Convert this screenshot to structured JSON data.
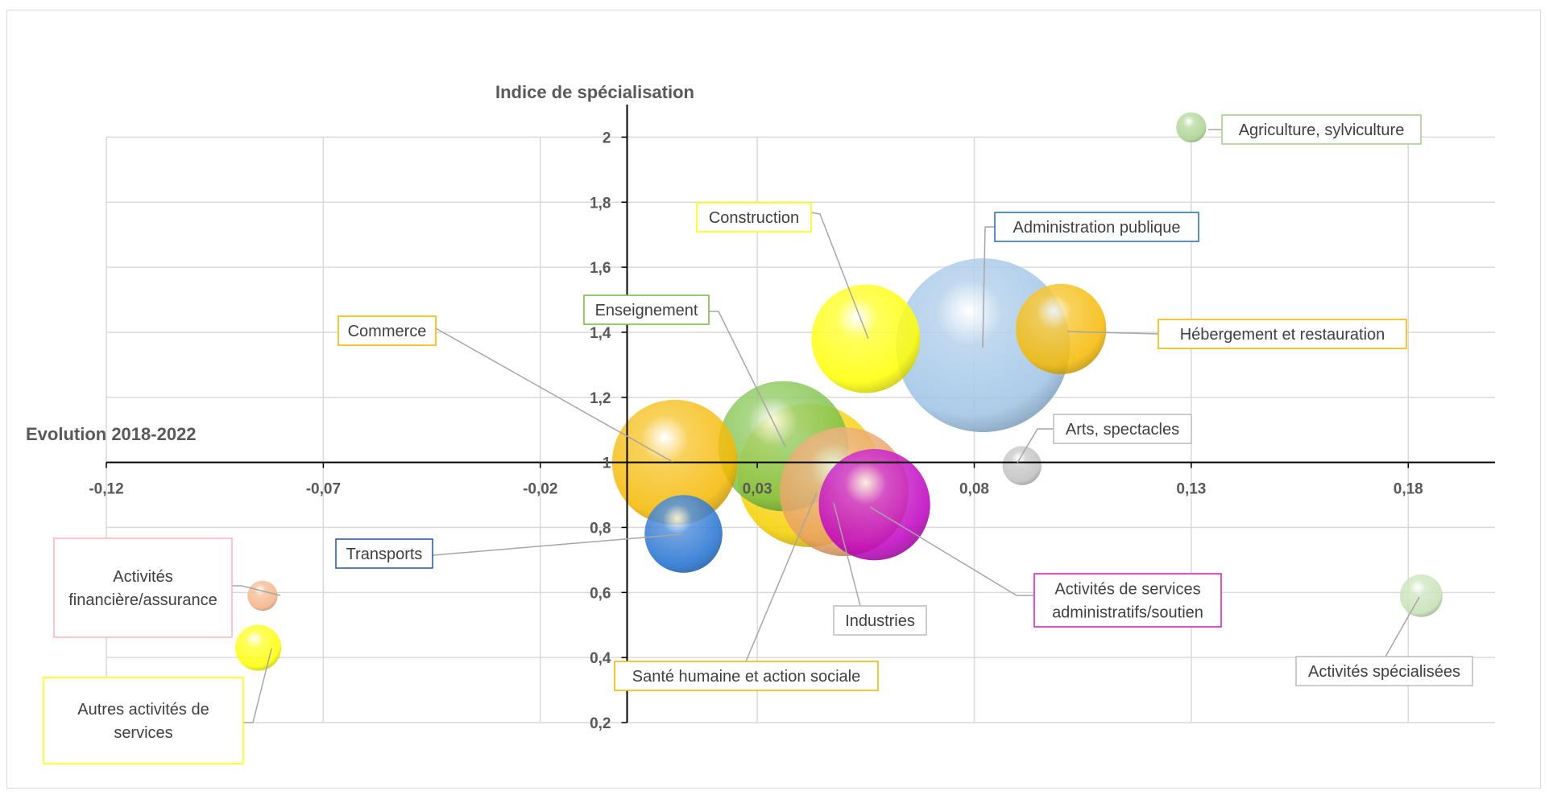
{
  "chart_data": {
    "type": "bubble",
    "xlabel": "Evolution 2018-2022",
    "ylabel": "Indice de spécialisation",
    "xlim": [
      -0.12,
      0.2
    ],
    "ylim": [
      0.2,
      2.1
    ],
    "x_ticks": [
      -0.12,
      -0.07,
      -0.02,
      0.03,
      0.08,
      0.13,
      0.18
    ],
    "x_tick_labels": [
      "-0,12",
      "-0,07",
      "-0,02",
      "0,03",
      "0,08",
      "0,13",
      "0,18"
    ],
    "y_ticks": [
      0.2,
      0.4,
      0.6,
      0.8,
      1.0,
      1.2,
      1.4,
      1.6,
      1.8,
      2.0
    ],
    "y_tick_labels": [
      "0,2",
      "0,4",
      "0,6",
      "0,8",
      "1",
      "1,2",
      "1,4",
      "1,6",
      "1,8",
      "2"
    ],
    "x_axis_crosses_y": 1.0,
    "y_axis_crosses_x": 0.0,
    "grid": true,
    "series": [
      {
        "name": "Commerce",
        "x": 0.011,
        "y": 1.0,
        "size": 0.52,
        "color": "#f5b800",
        "label_border": "#f5b800",
        "label_lines": [
          "Commerce"
        ]
      },
      {
        "name": "Hébergement et restauration",
        "x": 0.1,
        "y": 1.41,
        "size": 0.27,
        "color": "#f5b800",
        "label_border": "#f5b800",
        "label_lines": [
          "Hébergement et restauration"
        ]
      },
      {
        "name": "Construction",
        "x": 0.055,
        "y": 1.38,
        "size": 0.39,
        "color": "#ffff00",
        "label_border": "#ffff00",
        "label_lines": [
          "Construction"
        ]
      },
      {
        "name": "Administration publique",
        "x": 0.082,
        "y": 1.36,
        "size": 1.0,
        "color": "#9dc3e6",
        "label_border": "#2e75b6",
        "label_lines": [
          "Administration publique"
        ]
      },
      {
        "name": "Enseignement",
        "x": 0.036,
        "y": 1.05,
        "size": 0.56,
        "color": "#7bc043",
        "label_border": "#7bc043",
        "label_lines": [
          "Enseignement"
        ]
      },
      {
        "name": "Activités de services administratifs/soutien",
        "x": 0.057,
        "y": 0.87,
        "size": 0.41,
        "color": "#c000c0",
        "label_border": "#e020d0",
        "label_lines": [
          "Activités de services",
          "administratifs/soutien"
        ]
      },
      {
        "name": "Industries",
        "x": 0.05,
        "y": 0.91,
        "size": 0.55,
        "color": "#e8a060",
        "label_border": "#bfbfbf",
        "label_lines": [
          "Industries"
        ]
      },
      {
        "name": "Santé humaine et action sociale",
        "x": 0.042,
        "y": 0.96,
        "size": 0.68,
        "color": "#f5d000",
        "label_border": "#f5b800",
        "label_lines": [
          "Santé humaine et action sociale"
        ]
      },
      {
        "name": "Transports",
        "x": 0.013,
        "y": 0.78,
        "size": 0.2,
        "color": "#1f6fd0",
        "label_border": "#2e5cb8",
        "label_lines": [
          "Transports"
        ]
      },
      {
        "name": "Arts, spectacles",
        "x": 0.091,
        "y": 0.99,
        "size": 0.05,
        "color": "#bfbfbf",
        "label_border": "#bfbfbf",
        "label_lines": [
          "Arts, spectacles"
        ]
      },
      {
        "name": "Agriculture, sylviculture",
        "x": 0.13,
        "y": 2.03,
        "size": 0.03,
        "color": "#a9d18e",
        "label_border": "#a9d18e",
        "label_lines": [
          "Agriculture, sylviculture"
        ]
      },
      {
        "name": "Activités spécialisées",
        "x": 0.183,
        "y": 0.59,
        "size": 0.06,
        "color": "#c5e0b4",
        "label_border": "#bfbfbf",
        "label_lines": [
          "Activités spécialisées"
        ]
      },
      {
        "name": "Activités financière/assurance",
        "x": -0.084,
        "y": 0.59,
        "size": 0.03,
        "color": "#f4b183",
        "label_border": "#ffb6c1",
        "label_lines": [
          "Activités",
          "financière/assurance"
        ]
      },
      {
        "name": "Autres activités de services",
        "x": -0.085,
        "y": 0.43,
        "size": 0.07,
        "color": "#ffff00",
        "label_border": "#ffff00",
        "label_lines": [
          "Autres activités de",
          "services"
        ]
      }
    ]
  }
}
